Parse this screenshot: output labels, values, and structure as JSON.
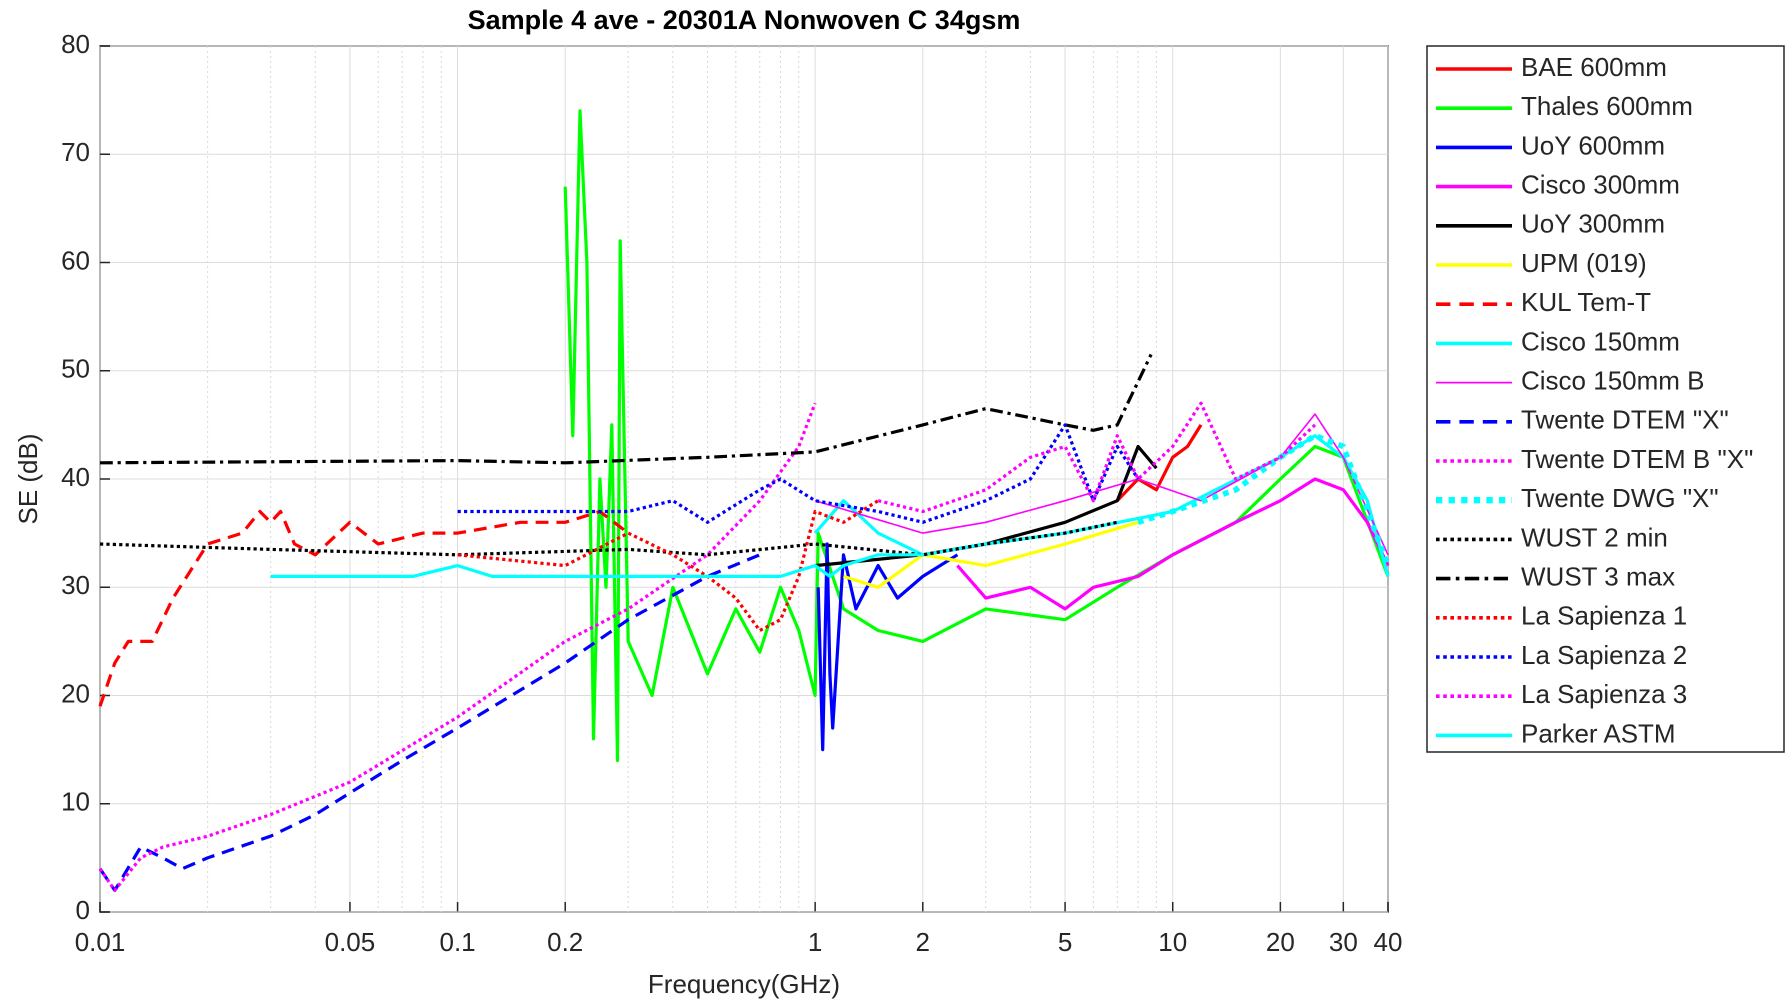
{
  "chart_data": {
    "type": "line",
    "title": "Sample 4 ave - 20301A Nonwoven C 34gsm",
    "xlabel": "Frequency(GHz)",
    "ylabel": "SE (dB)",
    "xscale": "log",
    "xlim": [
      0.01,
      40
    ],
    "ylim": [
      0,
      80
    ],
    "xticks": [
      0.01,
      0.05,
      0.1,
      0.2,
      1,
      2,
      5,
      10,
      20,
      30,
      40
    ],
    "xminorticks": [
      0.02,
      0.03,
      0.04,
      0.06,
      0.07,
      0.08,
      0.09,
      0.3,
      0.4,
      0.5,
      0.6,
      0.7,
      0.8,
      0.9,
      3,
      4,
      6,
      7,
      8,
      9
    ],
    "yticks": [
      0,
      10,
      20,
      30,
      40,
      50,
      60,
      70,
      80
    ],
    "grid": true,
    "legend": "outside right",
    "series": [
      {
        "name": "BAE 600mm",
        "color": "#ff0000",
        "style": "-",
        "width": 4,
        "x": [
          7,
          8,
          9,
          10,
          11,
          12
        ],
        "values": [
          38,
          40,
          39,
          42,
          43,
          45
        ]
      },
      {
        "name": "Thales 600mm",
        "color": "#00ff00",
        "style": "-",
        "width": 4,
        "x": [
          0.2,
          0.21,
          0.22,
          0.23,
          0.24,
          0.25,
          0.26,
          0.27,
          0.28,
          0.285,
          0.3,
          0.35,
          0.4,
          0.5,
          0.6,
          0.7,
          0.8,
          0.9,
          1.0,
          1.02,
          1.2,
          1.5,
          2,
          3,
          5,
          7,
          10,
          15,
          20,
          25,
          30,
          40
        ],
        "values": [
          67,
          44,
          74,
          60,
          16,
          40,
          30,
          45,
          14,
          62,
          25,
          20,
          30,
          22,
          28,
          24,
          30,
          26,
          20,
          35,
          28,
          26,
          25,
          28,
          27,
          30,
          33,
          36,
          40,
          43,
          42,
          31
        ]
      },
      {
        "name": "UoY 600mm",
        "color": "#0000ff",
        "style": "-",
        "width": 4,
        "x": [
          1.02,
          1.05,
          1.08,
          1.1,
          1.12,
          1.2,
          1.3,
          1.5,
          1.7,
          2,
          2.5
        ],
        "values": [
          30,
          15,
          34,
          22,
          17,
          33,
          28,
          32,
          29,
          31,
          33
        ]
      },
      {
        "name": "Cisco 300mm",
        "color": "#ff00ff",
        "style": "-",
        "width": 4,
        "x": [
          2.5,
          3,
          4,
          5,
          6,
          8,
          10,
          15,
          20,
          25,
          30,
          35,
          40
        ],
        "values": [
          32,
          29,
          30,
          28,
          30,
          31,
          33,
          36,
          38,
          40,
          39,
          36,
          32
        ]
      },
      {
        "name": "UoY 300mm",
        "color": "#000000",
        "style": "-",
        "width": 4,
        "x": [
          1,
          2,
          3,
          5,
          7,
          8,
          9
        ],
        "values": [
          32,
          33,
          34,
          36,
          38,
          43,
          41
        ]
      },
      {
        "name": "UPM (019)",
        "color": "#ffff00",
        "style": "-",
        "width": 4,
        "x": [
          1.2,
          1.5,
          2,
          3,
          5,
          8
        ],
        "values": [
          31,
          30,
          33,
          32,
          34,
          36
        ]
      },
      {
        "name": "KUL Tem-T",
        "color": "#ff0000",
        "style": "--",
        "width": 4,
        "x": [
          0.01,
          0.011,
          0.012,
          0.014,
          0.016,
          0.02,
          0.025,
          0.028,
          0.03,
          0.032,
          0.035,
          0.04,
          0.05,
          0.06,
          0.08,
          0.1,
          0.15,
          0.2,
          0.25,
          0.3
        ],
        "values": [
          19,
          23,
          25,
          25,
          29,
          34,
          35,
          37,
          36,
          37,
          34,
          33,
          36,
          34,
          35,
          35,
          36,
          36,
          37,
          35
        ]
      },
      {
        "name": "Cisco 150mm",
        "color": "#00ffff",
        "style": "-",
        "width": 4,
        "x": [
          1,
          1.2,
          1.5,
          2,
          3,
          5,
          10,
          20,
          25,
          30,
          35,
          40
        ],
        "values": [
          35,
          38,
          35,
          33,
          34,
          35,
          37,
          42,
          44,
          42,
          38,
          31
        ]
      },
      {
        "name": "Cisco 150mm B",
        "color": "#ff00ff",
        "style": "-",
        "width": 2,
        "x": [
          1,
          2,
          3,
          5,
          8,
          12,
          20,
          25,
          30,
          40
        ],
        "values": [
          38,
          35,
          36,
          38,
          40,
          38,
          42,
          46,
          42,
          33
        ]
      },
      {
        "name": "Twente DTEM \"X\"",
        "color": "#0000ff",
        "style": "--",
        "width": 4,
        "x": [
          0.01,
          0.011,
          0.013,
          0.015,
          0.017,
          0.02,
          0.03,
          0.04,
          0.05,
          0.07,
          0.1,
          0.2,
          0.3,
          0.5,
          0.7
        ],
        "values": [
          4,
          2,
          6,
          5,
          4,
          5,
          7,
          9,
          11,
          14,
          17,
          23,
          27,
          31,
          33
        ]
      },
      {
        "name": "Twente DTEM B \"X\"",
        "color": "#ff00ff",
        "style": ":",
        "width": 4,
        "x": [
          0.01,
          0.011,
          0.013,
          0.015,
          0.02,
          0.03,
          0.05,
          0.1,
          0.2,
          0.3,
          0.5,
          0.7,
          0.9,
          1.0
        ],
        "values": [
          4,
          2,
          5,
          6,
          7,
          9,
          12,
          18,
          25,
          28,
          33,
          38,
          43,
          47
        ]
      },
      {
        "name": "Twente DWG \"X\"",
        "color": "#00ffff",
        "style": ":",
        "width": 7,
        "x": [
          8,
          10,
          15,
          20,
          25,
          30,
          40
        ],
        "values": [
          36,
          37,
          39,
          42,
          44,
          43,
          32
        ]
      },
      {
        "name": "WUST 2 min",
        "color": "#000000",
        "style": ":",
        "width": 4,
        "x": [
          0.01,
          0.03,
          0.1,
          0.3,
          0.5,
          1,
          2,
          3,
          5,
          7
        ],
        "values": [
          34,
          33.5,
          33,
          33.5,
          33,
          34,
          33,
          34,
          35,
          36
        ]
      },
      {
        "name": "WUST 3 max",
        "color": "#000000",
        "style": "-.",
        "width": 4,
        "x": [
          0.01,
          0.1,
          0.2,
          0.5,
          1,
          2,
          3,
          5,
          6,
          7,
          8,
          8.7
        ],
        "values": [
          41.5,
          41.7,
          41.5,
          42,
          42.5,
          45,
          46.5,
          45,
          44.5,
          45,
          49,
          51.5
        ]
      },
      {
        "name": "La Sapienza 1",
        "color": "#ff0000",
        "style": ":",
        "width": 4,
        "x": [
          0.1,
          0.2,
          0.3,
          0.4,
          0.5,
          0.6,
          0.7,
          0.8,
          0.9,
          1,
          1.2,
          1.5
        ],
        "values": [
          33,
          32,
          35,
          33,
          31,
          29,
          26,
          27,
          31,
          37,
          36,
          38
        ]
      },
      {
        "name": "La Sapienza 2",
        "color": "#0000ff",
        "style": ":",
        "width": 4,
        "x": [
          0.1,
          0.2,
          0.3,
          0.4,
          0.5,
          0.7,
          0.8,
          1,
          1.5,
          2,
          3,
          4,
          5,
          6,
          7,
          8
        ],
        "values": [
          37,
          37,
          37,
          38,
          36,
          39,
          40,
          38,
          37,
          36,
          38,
          40,
          45,
          38,
          43,
          40
        ]
      },
      {
        "name": "La Sapienza 3",
        "color": "#ff00ff",
        "style": ":",
        "width": 4,
        "x": [
          1.5,
          2,
          3,
          4,
          5,
          6,
          7,
          8,
          10,
          12,
          15,
          20,
          25
        ],
        "values": [
          38,
          37,
          39,
          42,
          43,
          38,
          44,
          40,
          43,
          47,
          40,
          42,
          45
        ]
      },
      {
        "name": "Parker ASTM",
        "color": "#00ffff",
        "style": "-",
        "width": 4,
        "x": [
          0.03,
          0.075,
          0.1,
          0.125,
          0.2,
          0.5,
          0.8,
          1,
          1.1,
          1.2,
          1.5,
          2
        ],
        "values": [
          31,
          31,
          32,
          31,
          31,
          31,
          31,
          32,
          31,
          32,
          33,
          33
        ]
      }
    ]
  }
}
